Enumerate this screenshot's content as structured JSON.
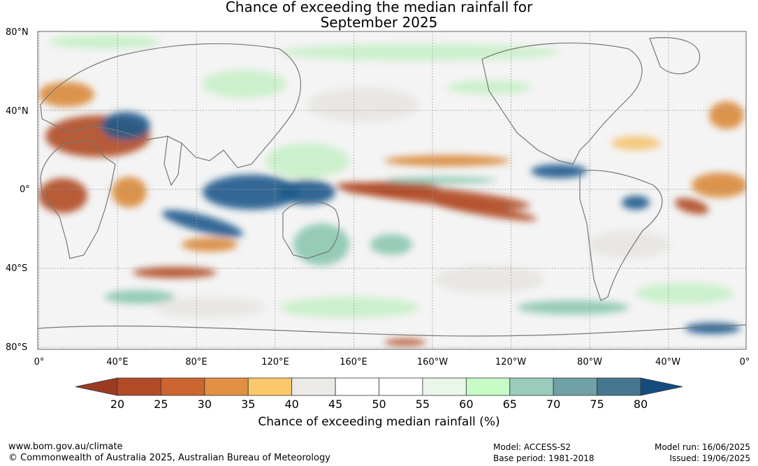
{
  "title_line1": "Chance of exceeding the median rainfall for",
  "title_line2": "September 2025",
  "map": {
    "lat_labels": [
      "80°N",
      "40°N",
      "0°",
      "40°S",
      "80°S"
    ],
    "lon_labels": [
      "0°",
      "40°E",
      "80°E",
      "120°E",
      "160°E",
      "160°W",
      "120°W",
      "80°W",
      "40°W",
      "0°"
    ],
    "colors": {
      "dry_strong": "#b04a26",
      "dry": "#d98a3a",
      "dry_light": "#f5c370",
      "neutral": "#e8e6e2",
      "wet_light": "#c8f0c8",
      "wet": "#8cc8b0",
      "wet_strong": "#1d5a8c"
    }
  },
  "legend": {
    "title": "Chance of exceeding median rainfall (%)",
    "ticks": [
      "20",
      "25",
      "30",
      "35",
      "40",
      "45",
      "50",
      "55",
      "60",
      "65",
      "70",
      "75",
      "80"
    ],
    "colors": [
      "#9c3a22",
      "#b24a28",
      "#cc6530",
      "#e09040",
      "#fcc96a",
      "#ebeae7",
      "#ffffff",
      "#ffffff",
      "#e9f6e9",
      "#c6fbc6",
      "#99ccbb",
      "#6fa1a6",
      "#45788f",
      "#154c80"
    ]
  },
  "footer": {
    "url": "www.bom.gov.au/climate",
    "copyright": "© Commonwealth of Australia 2025, Australian Bureau of Meteorology",
    "model": "Model: ACCESS-S2",
    "base_period": "Base period: 1981-2018",
    "model_run": "Model run: 16/06/2025",
    "issued": "Issued: 19/06/2025"
  }
}
